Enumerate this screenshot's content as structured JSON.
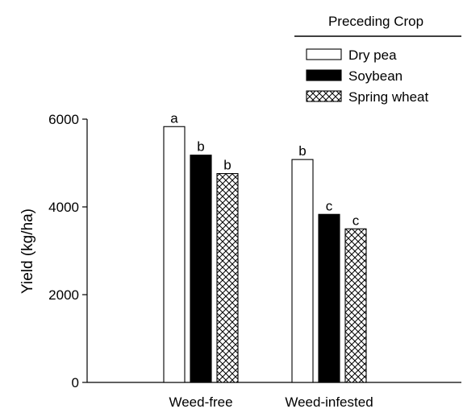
{
  "chart_data": {
    "type": "bar",
    "categories": [
      "Weed-free",
      "Weed-infested"
    ],
    "ylabel": "Yield (kg/ha)",
    "xlabel": "",
    "ylim": [
      0,
      6000
    ],
    "yticks": [
      0,
      2000,
      4000,
      6000
    ],
    "legend": {
      "title": "Preceding Crop",
      "placement": "top-right"
    },
    "series": [
      {
        "name": "Dry pea",
        "fill": "white",
        "values": [
          5830,
          5080
        ],
        "letters": [
          "a",
          "b"
        ]
      },
      {
        "name": "Soybean",
        "fill": "black",
        "values": [
          5180,
          3830
        ],
        "letters": [
          "b",
          "c"
        ]
      },
      {
        "name": "Spring wheat",
        "fill": "crosshatch",
        "values": [
          4760,
          3500
        ],
        "letters": [
          "b",
          "c"
        ]
      }
    ],
    "grid": false,
    "colors": {
      "bar_stroke": "#000000",
      "soybean": "#000000",
      "dry_pea": "#ffffff"
    }
  }
}
